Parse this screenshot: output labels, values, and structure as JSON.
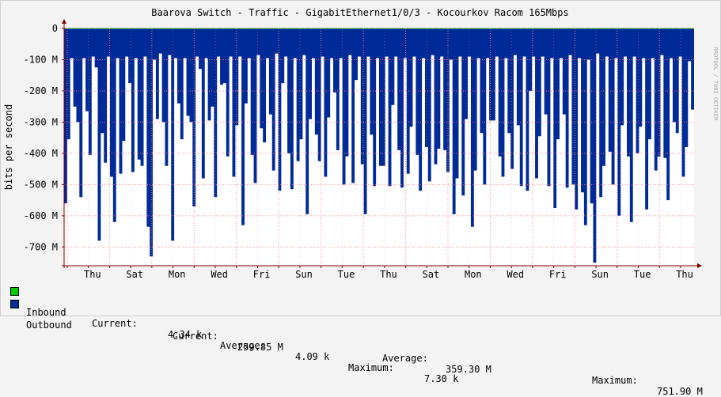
{
  "chart_data": {
    "type": "area",
    "title": "Baarova Switch - Traffic - GigabitEthernet1/0/3 - Kocourkov Racom 165Mbps",
    "ylabel": "bits per second",
    "watermark": "RRDTOOL / TOBI OETIKER",
    "ylim": [
      -760000000,
      0
    ],
    "y_ticks": [
      {
        "value": 0,
        "label": "0"
      },
      {
        "value": -100000000,
        "label": "-100 M"
      },
      {
        "value": -200000000,
        "label": "-200 M"
      },
      {
        "value": -300000000,
        "label": "-300 M"
      },
      {
        "value": -400000000,
        "label": "-400 M"
      },
      {
        "value": -500000000,
        "label": "-500 M"
      },
      {
        "value": -600000000,
        "label": "-600 M"
      },
      {
        "value": -700000000,
        "label": "-700 M"
      }
    ],
    "x_ticks": [
      "Thu",
      "Sat",
      "Mon",
      "Wed",
      "Fri",
      "Sun",
      "Tue",
      "Thu",
      "Sat",
      "Mon",
      "Wed",
      "Fri",
      "Sun",
      "Tue",
      "Thu"
    ],
    "grid": true,
    "colors": {
      "inbound": "#00cc00",
      "outbound": "#002a97",
      "grid": "#ff8080",
      "axis": "#800000"
    },
    "series": [
      {
        "name": "Inbound",
        "values": [
          0
        ]
      },
      {
        "name": "Outbound",
        "values": [
          -560,
          -355,
          -95,
          -250,
          -300,
          -540,
          -95,
          -265,
          -405,
          -90,
          -125,
          -680,
          -335,
          -430,
          -90,
          -475,
          -620,
          -95,
          -465,
          -360,
          -90,
          -175,
          -460,
          -95,
          -420,
          -440,
          -90,
          -635,
          -730,
          -100,
          -290,
          -80,
          -300,
          -440,
          -85,
          -680,
          -95,
          -240,
          -355,
          -95,
          -280,
          -300,
          -570,
          -90,
          -130,
          -480,
          -95,
          -295,
          -250,
          -540,
          -90,
          -180,
          -175,
          -410,
          -90,
          -475,
          -310,
          -90,
          -630,
          -240,
          -95,
          -405,
          -495,
          -85,
          -320,
          -365,
          -95,
          -275,
          -455,
          -80,
          -520,
          -175,
          -90,
          -400,
          -515,
          -95,
          -425,
          -355,
          -85,
          -595,
          -290,
          -95,
          -340,
          -425,
          -90,
          -475,
          -285,
          -95,
          -205,
          -390,
          -95,
          -500,
          -410,
          -85,
          -495,
          -165,
          -90,
          -435,
          -595,
          -90,
          -340,
          -505,
          -95,
          -440,
          -440,
          -90,
          -505,
          -245,
          -90,
          -390,
          -510,
          -95,
          -465,
          -315,
          -90,
          -405,
          -520,
          -95,
          -380,
          -490,
          -85,
          -435,
          -385,
          -90,
          -390,
          -460,
          -100,
          -595,
          -480,
          -90,
          -535,
          -290,
          -90,
          -635,
          -455,
          -95,
          -335,
          -500,
          -95,
          -295,
          -295,
          -90,
          -410,
          -475,
          -95,
          -335,
          -450,
          -85,
          -310,
          -505,
          -90,
          -520,
          -200,
          -90,
          -480,
          -345,
          -90,
          -275,
          -505,
          -95,
          -575,
          -355,
          -95,
          -275,
          -510,
          -85,
          -500,
          -580,
          -95,
          -525,
          -630,
          -100,
          -560,
          -750,
          -80,
          -540,
          -440,
          -90,
          -395,
          -500,
          -95,
          -600,
          -310,
          -90,
          -410,
          -620,
          -90,
          -400,
          -315,
          -95,
          -580,
          -355,
          -95,
          -455,
          -410,
          -85,
          -415,
          -550,
          -95,
          -300,
          -335,
          -90,
          -475,
          -380,
          -105,
          -260
        ]
      }
    ]
  },
  "legend": {
    "inbound": {
      "name": "Inbound",
      "current_label": "Current:",
      "current": "4.34 k",
      "average_label": "Average:",
      "average": "4.09 k",
      "maximum_label": "Maximum:",
      "maximum": "7.30 k"
    },
    "outbound": {
      "name": "Outbound",
      "current_label": "Current:",
      "current": "259.85 M",
      "average_label": "Average:",
      "average": "359.30 M",
      "maximum_label": "Maximum:",
      "maximum": "751.90 M"
    }
  }
}
